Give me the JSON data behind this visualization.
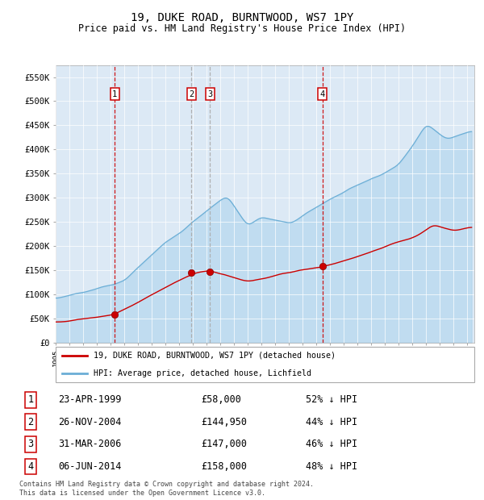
{
  "title": "19, DUKE ROAD, BURNTWOOD, WS7 1PY",
  "subtitle": "Price paid vs. HM Land Registry's House Price Index (HPI)",
  "ylim": [
    0,
    575000
  ],
  "yticks": [
    0,
    50000,
    100000,
    150000,
    200000,
    250000,
    300000,
    350000,
    400000,
    450000,
    500000,
    550000
  ],
  "ytick_labels": [
    "£0",
    "£50K",
    "£100K",
    "£150K",
    "£200K",
    "£250K",
    "£300K",
    "£350K",
    "£400K",
    "£450K",
    "£500K",
    "£550K"
  ],
  "plot_bg_color": "#dce9f5",
  "hpi_color": "#6baed6",
  "hpi_fill_color": "#aed4ed",
  "price_color": "#cc0000",
  "transactions": [
    {
      "id": 1,
      "date": "23-APR-1999",
      "year": 1999.31,
      "price": 58000,
      "pct": "52%",
      "vline_color": "#cc0000"
    },
    {
      "id": 2,
      "date": "26-NOV-2004",
      "year": 2004.9,
      "price": 144950,
      "pct": "44%",
      "vline_color": "#aaaaaa"
    },
    {
      "id": 3,
      "date": "31-MAR-2006",
      "year": 2006.25,
      "price": 147000,
      "pct": "46%",
      "vline_color": "#aaaaaa"
    },
    {
      "id": 4,
      "date": "06-JUN-2014",
      "year": 2014.43,
      "price": 158000,
      "pct": "48%",
      "vline_color": "#cc0000"
    }
  ],
  "legend_price_label": "19, DUKE ROAD, BURNTWOOD, WS7 1PY (detached house)",
  "legend_hpi_label": "HPI: Average price, detached house, Lichfield",
  "footnote": "Contains HM Land Registry data © Crown copyright and database right 2024.\nThis data is licensed under the Open Government Licence v3.0.",
  "title_fontsize": 10,
  "subtitle_fontsize": 8.5
}
